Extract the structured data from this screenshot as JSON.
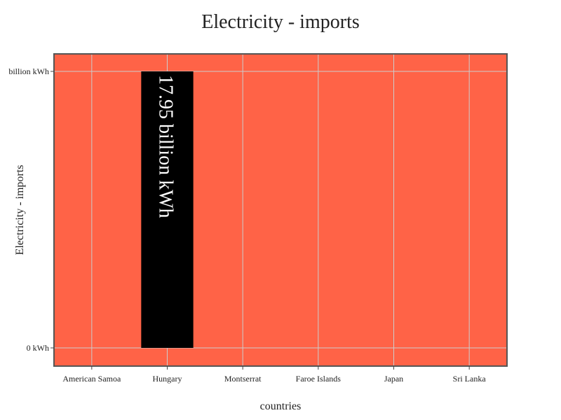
{
  "chart_data": {
    "type": "bar",
    "title": "Electricity - imports",
    "xlabel": "countries",
    "ylabel": "Electricity - imports",
    "categories": [
      "American Samoa",
      "Hungary",
      "Montserrat",
      "Faroe Islands",
      "Japan",
      "Sri Lanka"
    ],
    "values": [
      0,
      17.95,
      0,
      0,
      0,
      0
    ],
    "unit": "billion kWh",
    "ylim": [
      0,
      17.95
    ],
    "y_ticks": [
      {
        "value": 0,
        "label": "0 kWh"
      },
      {
        "value": 17.95,
        "label": "billion kWh"
      }
    ],
    "data_labels": [
      {
        "category": "Hungary",
        "text": "17.95 billion kWh"
      }
    ],
    "grid": true,
    "colors": {
      "plot_background": "#ff6347",
      "bar": "#000000",
      "grid": "#cccccc",
      "frame": "#555555",
      "data_label": "#ffffff"
    }
  }
}
